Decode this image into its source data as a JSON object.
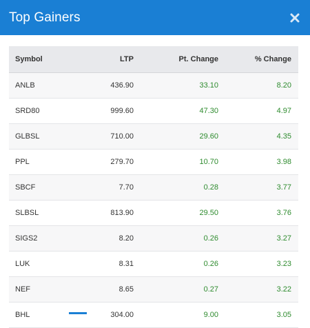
{
  "header": {
    "title": "Top Gainers",
    "close_icon": "close-icon"
  },
  "table": {
    "columns": [
      "Symbol",
      "LTP",
      "Pt. Change",
      "% Change"
    ],
    "rows": [
      {
        "symbol": "ANLB",
        "ltp": "436.90",
        "pt_change": "33.10",
        "pct_change": "8.20"
      },
      {
        "symbol": "SRD80",
        "ltp": "999.60",
        "pt_change": "47.30",
        "pct_change": "4.97"
      },
      {
        "symbol": "GLBSL",
        "ltp": "710.00",
        "pt_change": "29.60",
        "pct_change": "4.35"
      },
      {
        "symbol": "PPL",
        "ltp": "279.70",
        "pt_change": "10.70",
        "pct_change": "3.98"
      },
      {
        "symbol": "SBCF",
        "ltp": "7.70",
        "pt_change": "0.28",
        "pct_change": "3.77"
      },
      {
        "symbol": "SLBSL",
        "ltp": "813.90",
        "pt_change": "29.50",
        "pct_change": "3.76"
      },
      {
        "symbol": "SIGS2",
        "ltp": "8.20",
        "pt_change": "0.26",
        "pct_change": "3.27"
      },
      {
        "symbol": "LUK",
        "ltp": "8.31",
        "pt_change": "0.26",
        "pct_change": "3.23"
      },
      {
        "symbol": "NEF",
        "ltp": "8.65",
        "pt_change": "0.27",
        "pct_change": "3.22"
      },
      {
        "symbol": "BHL",
        "ltp": "304.00",
        "pt_change": "9.00",
        "pct_change": "3.05"
      }
    ]
  },
  "colors": {
    "header_bg": "#1a7fd4",
    "positive": "#2e8b2e",
    "header_row_bg": "#e8e9ec"
  }
}
